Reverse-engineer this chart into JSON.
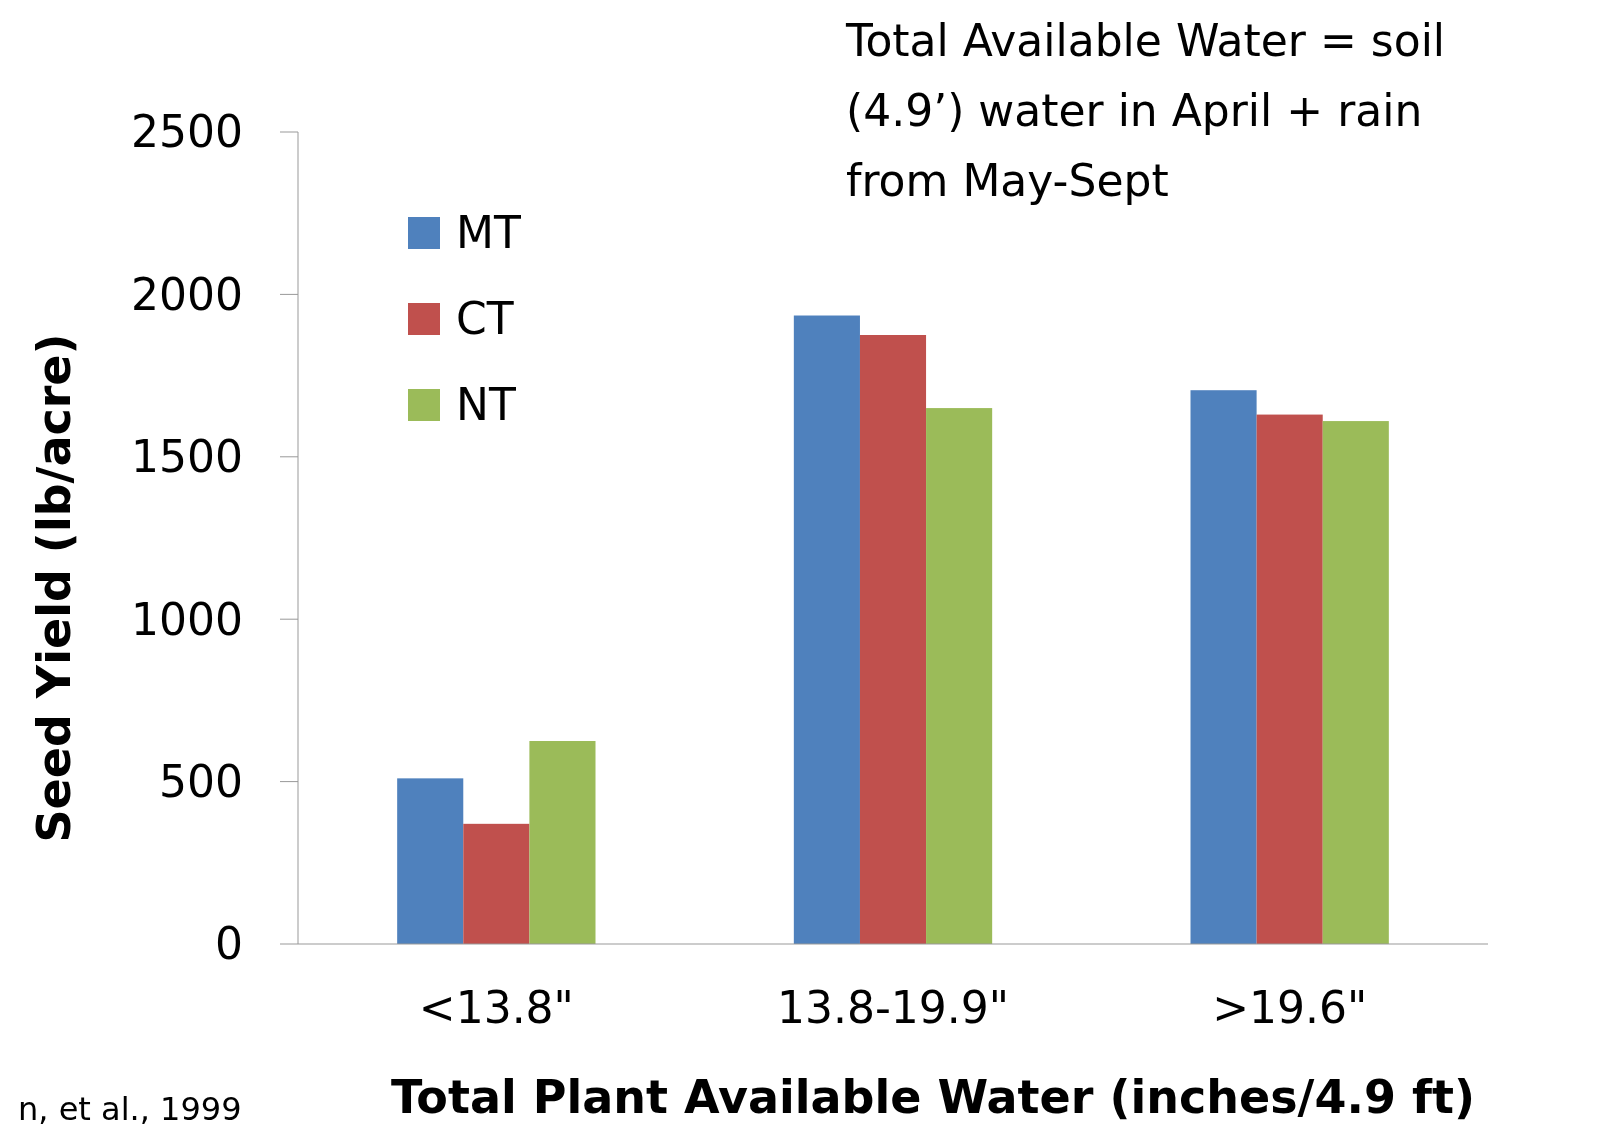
{
  "chart_data": {
    "type": "bar",
    "title": "Total Available Water = soil (4.9’) water in April  + rain from May-Sept",
    "xlabel": "Total Plant Available Water (inches/4.9 ft)",
    "ylabel": "Seed Yield (lb/acre)",
    "categories": [
      "<13.8\"",
      "13.8-19.9\"",
      ">19.6\""
    ],
    "series": [
      {
        "name": "MT",
        "color": "#4f81bd",
        "values": [
          510,
          1935,
          1705
        ]
      },
      {
        "name": "CT",
        "color": "#c0504d",
        "values": [
          370,
          1875,
          1630
        ]
      },
      {
        "name": "NT",
        "color": "#9bbb59",
        "values": [
          625,
          1650,
          1610
        ]
      }
    ],
    "ylim": [
      0,
      2500
    ],
    "yticks": [
      0,
      500,
      1000,
      1500,
      2000,
      2500
    ],
    "grid": false,
    "legend": "top left",
    "annotations": [
      "n, et al., 1999"
    ]
  }
}
